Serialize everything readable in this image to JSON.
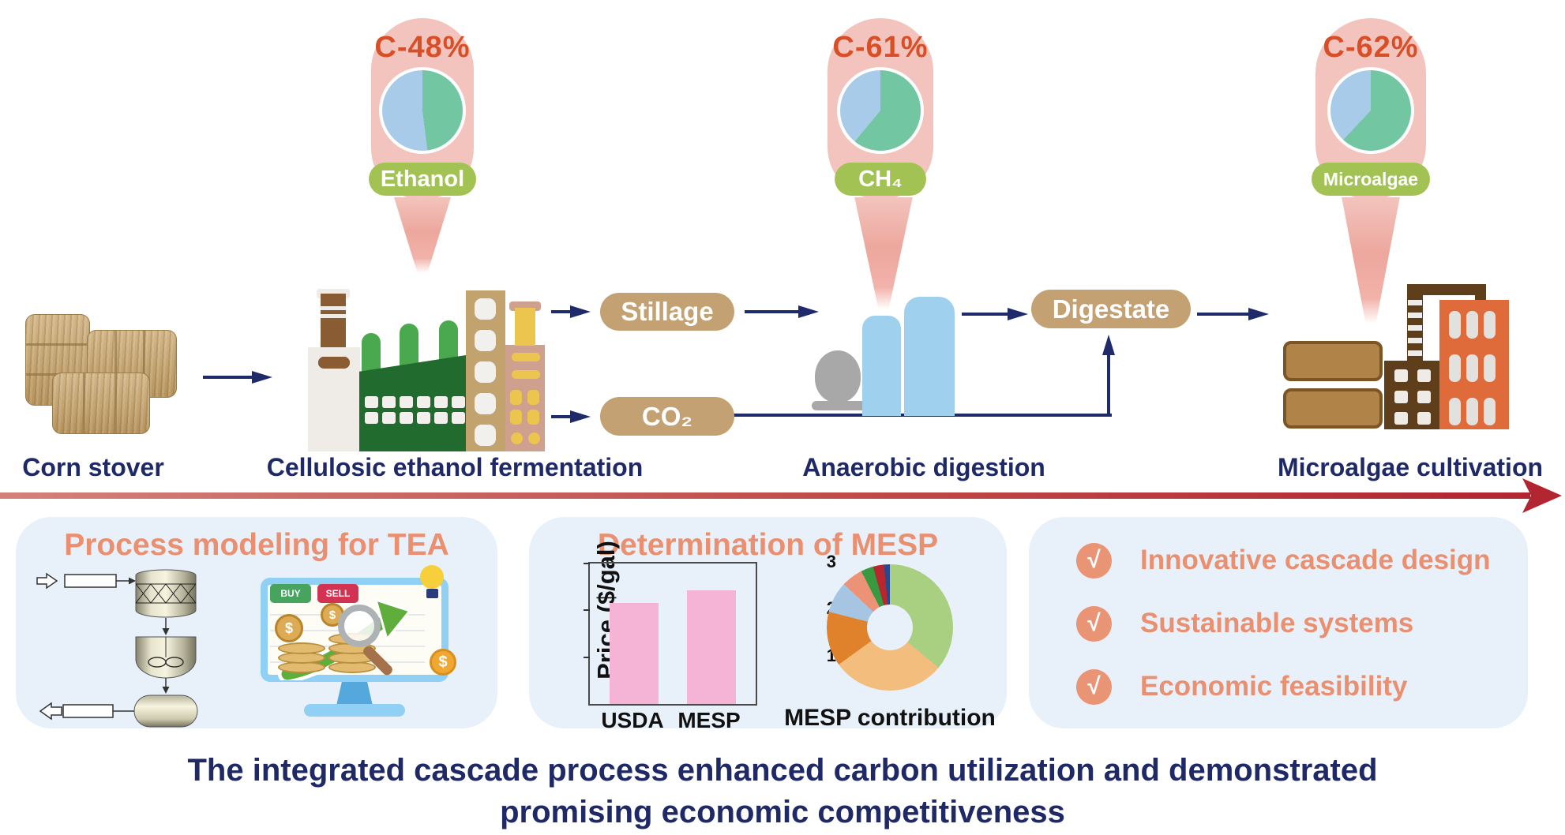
{
  "flow": {
    "stages": [
      {
        "label": "Corn stover"
      },
      {
        "label": "Cellulosic ethanol fermentation"
      },
      {
        "label": "Anaerobic digestion"
      },
      {
        "label": "Microalgae cultivation"
      }
    ],
    "balloons": [
      {
        "carbon_label": "C-48%",
        "product": "Ethanol",
        "pie_green_pct": 48
      },
      {
        "carbon_label": "C-61%",
        "product": "CH₄",
        "pie_green_pct": 61
      },
      {
        "carbon_label": "C-62%",
        "product": "Microalgae",
        "pie_green_pct": 62
      }
    ],
    "streams": {
      "stillage": "Stillage",
      "co2": "CO₂",
      "digestate": "Digestate"
    }
  },
  "panels": {
    "tea": {
      "title": "Process modeling for TEA",
      "monitor": {
        "buy": "BUY",
        "sell": "SELL",
        "dollar": "$"
      }
    },
    "mesp": {
      "title": "Determination of MESP",
      "donut_label": "MESP contribution"
    },
    "highlights": {
      "check": "√",
      "items": [
        "Innovative cascade design",
        "Sustainable systems",
        "Economic feasibility"
      ]
    }
  },
  "chart_data": [
    {
      "type": "bar",
      "title": "Determination of MESP",
      "categories": [
        "USDA",
        "MESP"
      ],
      "values": [
        2.15,
        2.43
      ],
      "xlabel": "",
      "ylabel": "Price ($/gal)",
      "ylim": [
        0,
        3
      ],
      "yticks": [
        3,
        2,
        1
      ],
      "grid": false,
      "bar_color": "#f5b3d6"
    },
    {
      "type": "pie",
      "subtype": "donut",
      "title": "MESP contribution",
      "slices": [
        {
          "value": 36,
          "color": "#a9cf80"
        },
        {
          "value": 29,
          "color": "#f2bd7d"
        },
        {
          "value": 14,
          "color": "#e0812b"
        },
        {
          "value": 8,
          "color": "#a6c5e2"
        },
        {
          "value": 5.5,
          "color": "#ec9377"
        },
        {
          "value": 3.2,
          "color": "#389a40"
        },
        {
          "value": 2.8,
          "color": "#b8272d"
        },
        {
          "value": 1.5,
          "color": "#27498f"
        }
      ]
    }
  ],
  "caption": {
    "line1": "The integrated cascade process enhanced carbon utilization and demonstrated",
    "line2": "promising economic competitiveness"
  },
  "colors": {
    "navy": "#1f2a6b",
    "caption_navy": "#1e2966",
    "red_arrow": "#b22631",
    "balloon_pink": "#f2c4bd",
    "carbon_orange": "#d84f27",
    "pie_green": "#72c6a2",
    "pie_blue": "#a8cbe9",
    "product_green": "#a2c353",
    "stream_tan": "#c3a172",
    "panel_bg": "#e8f1f9",
    "panel_title": "#ea8f70",
    "check_circle": "#ea9476",
    "bar_pink": "#f5b3d6"
  }
}
